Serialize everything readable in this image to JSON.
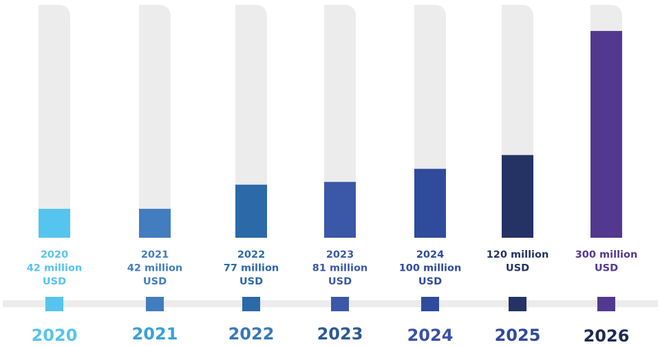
{
  "chart_data": {
    "type": "bar",
    "title": "",
    "xlabel": "",
    "ylabel": "",
    "unit": "million USD",
    "ylim": [
      0,
      320
    ],
    "grid": false,
    "legend": "none",
    "categories": [
      "2020",
      "2021",
      "2022",
      "2023",
      "2024",
      "2025",
      "2026"
    ],
    "values": [
      42,
      42,
      77,
      81,
      100,
      120,
      300
    ],
    "colors": [
      "#55c4ef",
      "#427dbf",
      "#2b69a8",
      "#3a58a7",
      "#2f4b9b",
      "#243364",
      "#533890"
    ],
    "year_label_colors": [
      "#55c4ef",
      "#3a9fd6",
      "#3a78b8",
      "#2d5a94",
      "#3a4fa8",
      "#2f4b9b",
      "#1d2b52"
    ],
    "value_labels": [
      [
        "2020",
        "42 million",
        "USD"
      ],
      [
        "2021",
        "42 million",
        "USD"
      ],
      [
        "2022",
        "77 million",
        "USD"
      ],
      [
        "2023",
        "81 million",
        "USD"
      ],
      [
        "2024",
        "100 million",
        "USD"
      ],
      [
        "120 million",
        "USD"
      ],
      [
        "300 million",
        "USD"
      ]
    ],
    "track_color": "#ececec"
  }
}
